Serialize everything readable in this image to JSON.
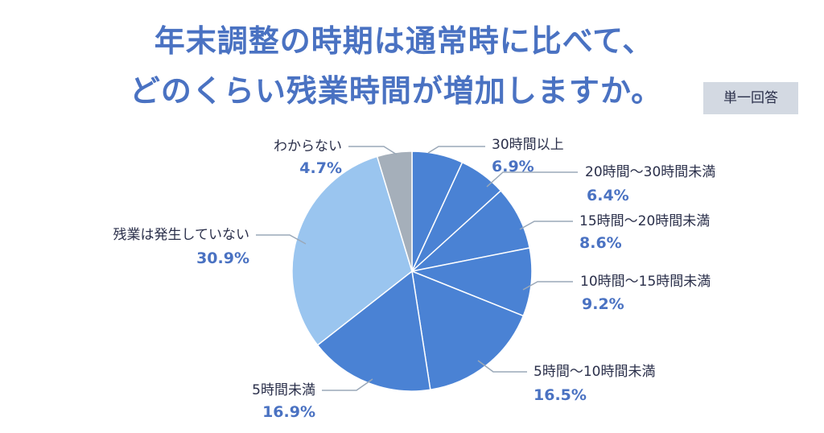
{
  "header": {
    "title_line1": "年末調整の時期は通常時に比べて、",
    "title_line2": "どのくらい残業時間が増加しますか。",
    "badge": "単一回答"
  },
  "colors": {
    "accent": "#4a72c2",
    "slice_main": "#4a82d4",
    "slice_light": "#9ac5ef",
    "slice_gray": "#a5afba",
    "badge_bg": "#d3d9e2",
    "leader_line": "#9aa8b8"
  },
  "chart_data": {
    "type": "pie",
    "title": "年末調整の時期は通常時に比べて、どのくらい残業時間が増加しますか。",
    "subtitle": "単一回答",
    "categories": [
      "30時間以上",
      "20時間〜30時間未満",
      "15時間〜20時間未満",
      "10時間〜15時間未満",
      "5時間〜10時間未満",
      "5時間未満",
      "残業は発生していない",
      "わからない"
    ],
    "values": [
      6.9,
      6.4,
      8.6,
      9.2,
      16.5,
      16.9,
      30.9,
      4.7
    ],
    "value_labels": [
      "6.9%",
      "6.4%",
      "8.6%",
      "9.2%",
      "16.5%",
      "16.9%",
      "30.9%",
      "4.7%"
    ],
    "unit": "%",
    "start_angle": "12 o'clock, clockwise",
    "legend": "none (callout labels)"
  },
  "labels": [
    {
      "name": "30時間以上",
      "pct": "6.9%"
    },
    {
      "name": "20時間〜30時間未満",
      "pct": "6.4%"
    },
    {
      "name": "15時間〜20時間未満",
      "pct": "8.6%"
    },
    {
      "name": "10時間〜15時間未満",
      "pct": "9.2%"
    },
    {
      "name": "5時間〜10時間未満",
      "pct": "16.5%"
    },
    {
      "name": "5時間未満",
      "pct": "16.9%"
    },
    {
      "name": "残業は発生していない",
      "pct": "30.9%"
    },
    {
      "name": "わからない",
      "pct": "4.7%"
    }
  ]
}
